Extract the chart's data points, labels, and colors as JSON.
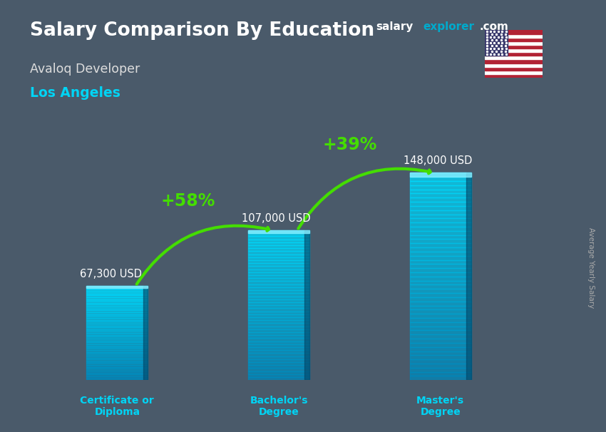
{
  "title_main": "Salary Comparison By Education",
  "subtitle1": "Avaloq Developer",
  "subtitle2": "Los Angeles",
  "ylabel": "Average Yearly Salary",
  "website_salary": "salary",
  "website_explorer": "explorer",
  "website_com": ".com",
  "categories": [
    "Certificate or\nDiploma",
    "Bachelor's\nDegree",
    "Master's\nDegree"
  ],
  "values": [
    67300,
    107000,
    148000
  ],
  "value_labels": [
    "67,300 USD",
    "107,000 USD",
    "148,000 USD"
  ],
  "pct_labels": [
    "+58%",
    "+39%"
  ],
  "bar_color_main": "#00c8ee",
  "bar_color_dark": "#0088aa",
  "bar_alpha": 0.75,
  "bg_color": "#4a5a6a",
  "title_color": "#ffffff",
  "subtitle1_color": "#dddddd",
  "subtitle2_color": "#00d4f5",
  "label_color": "#ffffff",
  "cat_color": "#00d4f5",
  "pct_color": "#66ff00",
  "arrow_color": "#44dd00",
  "website_salary_color": "#ffffff",
  "website_explorer_color": "#00aacc",
  "website_com_color": "#ffffff",
  "bar_width": 0.38,
  "ylim": [
    0,
    185000
  ],
  "figsize": [
    8.5,
    6.06
  ],
  "dpi": 100
}
